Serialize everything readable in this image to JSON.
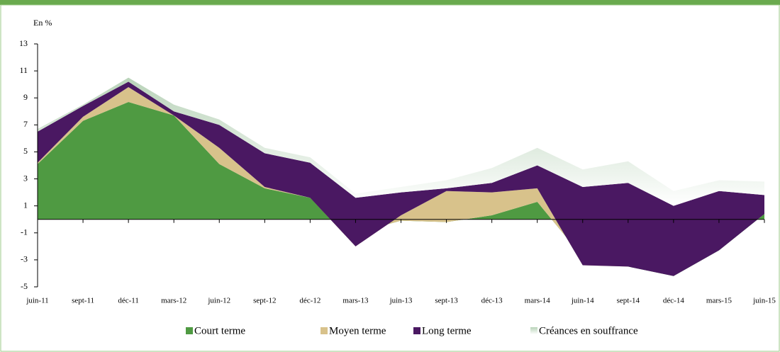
{
  "chart_data": {
    "type": "area",
    "stacked": true,
    "y_label": "En %",
    "categories": [
      "juin-11",
      "sept-11",
      "déc-11",
      "mars-12",
      "juin-12",
      "sept-12",
      "déc-12",
      "mars-13",
      "juin-13",
      "sept-13",
      "déc-13",
      "mars-14",
      "juin-14",
      "sept-14",
      "déc-14",
      "mars-15",
      "juin-15"
    ],
    "series": [
      {
        "name": "Court terme",
        "color": "#4f9a42",
        "values": [
          4.1,
          7.3,
          8.7,
          7.7,
          4.1,
          2.3,
          1.6,
          -1.0,
          -0.1,
          -0.2,
          0.3,
          1.3,
          -2.8,
          -3.5,
          -4.2,
          -2.3,
          0.4
        ]
      },
      {
        "name": "Moyen terme",
        "color": "#d8c28b",
        "values": [
          0.1,
          0.3,
          1.1,
          0.0,
          1.2,
          0.1,
          0.0,
          -1.0,
          0.4,
          2.3,
          1.7,
          1.0,
          -0.6,
          0.0,
          0.0,
          0.0,
          0.0
        ]
      },
      {
        "name": "Long terme",
        "color": "#4a1862",
        "values": [
          2.3,
          0.8,
          0.4,
          0.3,
          1.7,
          2.5,
          2.6,
          3.6,
          1.7,
          0.2,
          0.7,
          1.7,
          5.8,
          6.2,
          5.2,
          4.4,
          1.4
        ]
      },
      {
        "name": "Créances en souffrance",
        "color": "#b9d3b9",
        "values": [
          0.2,
          0.1,
          0.3,
          0.5,
          0.4,
          0.4,
          0.4,
          0.3,
          0.4,
          0.6,
          1.1,
          1.3,
          1.3,
          1.6,
          1.1,
          0.8,
          1.0
        ]
      }
    ],
    "ylim": [
      -5,
      13
    ],
    "yticks": [
      -5,
      -3,
      -1,
      1,
      3,
      5,
      7,
      9,
      11,
      13
    ]
  }
}
